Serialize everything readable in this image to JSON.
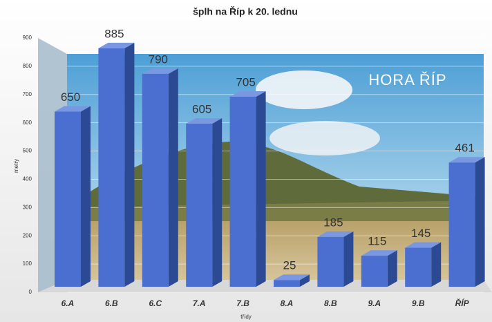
{
  "chart_data": {
    "type": "bar3d",
    "title": "šplh na Říp k 20. lednu",
    "annotation": "HORA ŘÍP",
    "x_label": "třídy",
    "y_label": "metry",
    "categories": [
      "6.A",
      "6.B",
      "6.C",
      "7.A",
      "7.B",
      "8.A",
      "8.B",
      "9.A",
      "9.B",
      "ŘÍP"
    ],
    "values": [
      650,
      885,
      790,
      605,
      705,
      25,
      185,
      115,
      145,
      461
    ],
    "color": "#4a6fd0",
    "ylim": [
      0,
      900
    ],
    "yticks": [
      0,
      100,
      200,
      300,
      400,
      500,
      600,
      700,
      800,
      900
    ],
    "grid": true
  }
}
